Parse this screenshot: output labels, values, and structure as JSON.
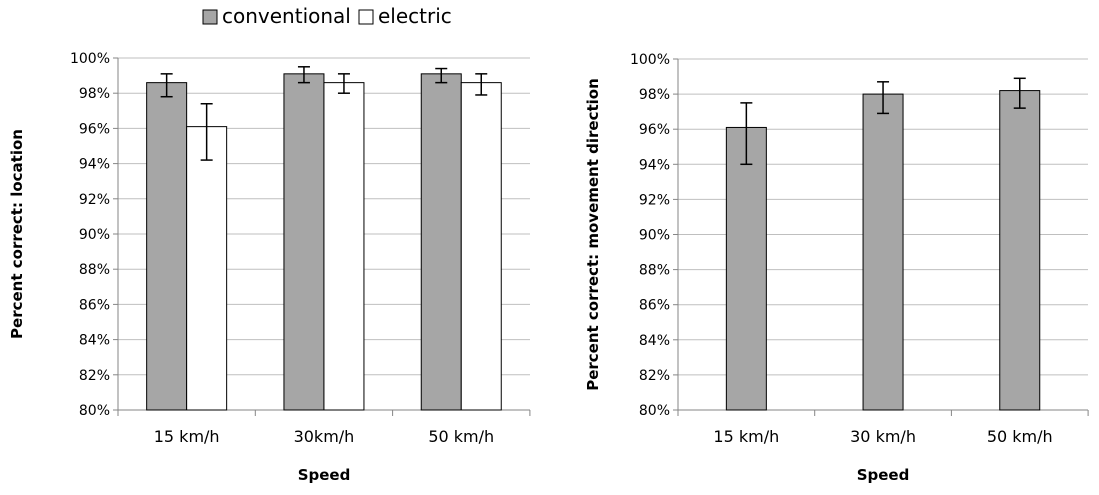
{
  "legend": {
    "items": [
      {
        "label": "conventional",
        "color": "#a6a6a6"
      },
      {
        "label": "electric",
        "color": "#ffffff"
      }
    ]
  },
  "chart_data": [
    {
      "type": "bar",
      "xlabel": "Speed",
      "ylabel": "Percent correct: location",
      "categories": [
        "15 km/h",
        "30km/h",
        "50 km/h"
      ],
      "ylim": [
        80,
        100
      ],
      "yticks": [
        "80%",
        "82%",
        "84%",
        "86%",
        "88%",
        "90%",
        "92%",
        "94%",
        "96%",
        "98%",
        "100%"
      ],
      "grid": true,
      "legend_position": "top",
      "series": [
        {
          "name": "conventional",
          "color": "#a6a6a6",
          "values": [
            98.6,
            99.1,
            99.1
          ],
          "err_low": [
            0.8,
            0.5,
            0.5
          ],
          "err_high": [
            0.5,
            0.4,
            0.3
          ]
        },
        {
          "name": "electric",
          "color": "#ffffff",
          "values": [
            96.1,
            98.6,
            98.6
          ],
          "err_low": [
            1.9,
            0.6,
            0.7
          ],
          "err_high": [
            1.3,
            0.5,
            0.5
          ]
        }
      ]
    },
    {
      "type": "bar",
      "xlabel": "Speed",
      "ylabel": "Percent correct: movement direction",
      "categories": [
        "15 km/h",
        "30 km/h",
        "50 km/h"
      ],
      "ylim": [
        80,
        100
      ],
      "yticks": [
        "80%",
        "82%",
        "84%",
        "86%",
        "88%",
        "90%",
        "92%",
        "94%",
        "96%",
        "98%",
        "100%"
      ],
      "grid": true,
      "series": [
        {
          "color": "#a6a6a6",
          "values": [
            96.1,
            98.0,
            98.2
          ],
          "err_low": [
            2.1,
            1.1,
            1.0
          ],
          "err_high": [
            1.4,
            0.7,
            0.7
          ]
        }
      ]
    }
  ]
}
